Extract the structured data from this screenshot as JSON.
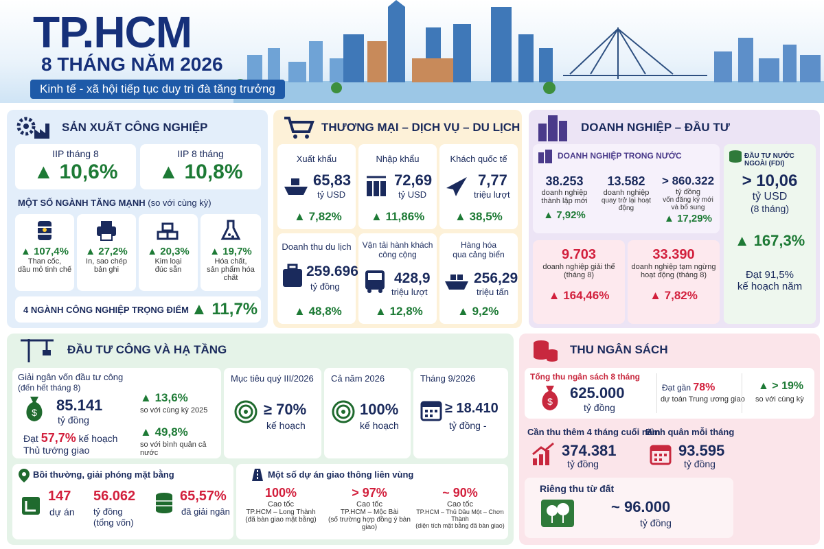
{
  "header": {
    "title": "TP.HCM",
    "subtitle": "8 THÁNG NĂM 2026",
    "tagline": "Kinh tế - xã hội tiếp tục duy trì đà tăng trưởng"
  },
  "industry": {
    "title": "SẢN XUẤT CÔNG NGHIỆP",
    "iip_month_label": "IIP tháng 8",
    "iip_month_value": "10,6%",
    "iip_8m_label": "IIP 8 tháng",
    "iip_8m_value": "10,8%",
    "sectors_title": "MỘT SỐ NGÀNH TĂNG MẠNH",
    "sectors_note": "(so với cùng kỳ)",
    "sectors": [
      {
        "value": "107,4%",
        "label1": "Than cốc,",
        "label2": "dầu mỏ tinh chế",
        "icon": "oil-barrel-icon"
      },
      {
        "value": "27,2%",
        "label1": "In, sao chép",
        "label2": "bản ghi",
        "icon": "printer-icon"
      },
      {
        "value": "20,3%",
        "label1": "Kim loại",
        "label2": "đúc sẵn",
        "icon": "metal-bars-icon"
      },
      {
        "value": "19,7%",
        "label1": "Hóa chất,",
        "label2": "sản phẩm hóa chất",
        "icon": "flask-icon"
      }
    ],
    "key_label": "4 NGÀNH CÔNG NGHIỆP TRỌNG ĐIỂM",
    "key_value": "11,7%"
  },
  "trade": {
    "title": "THƯƠNG MẠI – DỊCH VỤ – DU LỊCH",
    "items": [
      {
        "label": "Xuất khẩu",
        "value": "65,83",
        "unit": "tỷ USD",
        "growth": "7,82%",
        "icon": "ship-icon"
      },
      {
        "label": "Nhập khẩu",
        "value": "72,69",
        "unit": "tỷ USD",
        "growth": "11,86%",
        "icon": "containers-icon"
      },
      {
        "label": "Khách quốc tế",
        "value": "7,77",
        "unit": "triệu lượt",
        "growth": "38,5%",
        "icon": "airplane-icon"
      },
      {
        "label": "Doanh thu du lịch",
        "value": "259.696",
        "unit": "tỷ đồng",
        "growth": "48,8%",
        "icon": "suitcase-icon"
      },
      {
        "label1": "Vận tải hành khách",
        "label2": "công cộng",
        "value": "428,9",
        "unit": "triệu lượt",
        "growth": "12,8%",
        "icon": "bus-icon"
      },
      {
        "label1": "Hàng hóa",
        "label2": "qua cảng biển",
        "value": "256,29",
        "unit": "triệu tấn",
        "growth": "9,2%",
        "icon": "cargo-ship-icon"
      }
    ]
  },
  "business": {
    "title": "DOANH NGHIỆP – ĐẦU TƯ",
    "domestic_title": "DOANH NGHIỆP TRONG NƯỚC",
    "new_value": "38.253",
    "new_l1": "doanh nghiệp",
    "new_l2": "thành lập mới",
    "new_growth": "7,92%",
    "return_value": "13.582",
    "return_l1": "doanh nghiệp",
    "return_l2": "quay trở lại hoạt động",
    "capital_value": "> 860.322",
    "capital_l1": "tỷ đồng",
    "capital_l2": "vốn đăng ký mới",
    "capital_l3": "và bổ sung",
    "capital_growth": "17,29%",
    "dissolved_value": "9.703",
    "dissolved_l1": "doanh nghiệp giải thể",
    "dissolved_l2": "(tháng 8)",
    "dissolved_growth": "164,46%",
    "paused_value": "33.390",
    "paused_l1": "doanh nghiệp tạm ngừng",
    "paused_l2": "hoạt động (tháng 8)",
    "paused_growth": "7,82%",
    "fdi_title": "ĐẦU TƯ NƯỚC NGOÀI (FDI)",
    "fdi_value": "> 10,06",
    "fdi_unit": "tỷ USD",
    "fdi_period": "(8 tháng)",
    "fdi_growth": "167,3%",
    "fdi_plan1": "Đạt 91,5%",
    "fdi_plan2": "kế hoạch năm"
  },
  "public": {
    "title": "ĐẦU TƯ CÔNG VÀ HẠ TẦNG",
    "disb_title": "Giải ngân vốn đầu tư công",
    "disb_sub": "(đến hết tháng 8)",
    "disb_value": "85.141",
    "disb_unit": "tỷ đồng",
    "disb_plan_pre": "Đạt",
    "disb_plan_pct": "57,7%",
    "disb_plan_post": "kế hoạch",
    "disb_plan_l2": "Thủ tướng giao",
    "g1": "13,6%",
    "g1_note": "so với cùng kỳ 2025",
    "g2": "49,8%",
    "g2_note": "so với bình quân cả nước",
    "q3_title": "Mục tiêu quý III/2026",
    "q3_value": "≥ 70%",
    "q3_note": "kế hoạch",
    "year_title": "Cả năm 2026",
    "year_value": "100%",
    "year_note": "kế hoạch",
    "sep_title": "Tháng 9/2026",
    "sep_value": "≥ 18.410",
    "sep_note": "tỷ đồng -",
    "land_title": "Bồi thường, giải phóng mặt bằng",
    "land_projects": "147",
    "land_projects_l": "dự án",
    "land_capital": "56.062",
    "land_capital_l1": "tỷ đồng",
    "land_capital_l2": "(tổng vốn)",
    "land_paid": "65,57%",
    "land_paid_l": "đã giải ngân",
    "roads_title": "Một số dự án giao thông liên vùng",
    "roads": [
      {
        "value": "100%",
        "l1": "Cao tốc",
        "l2": "TP.HCM – Long Thành",
        "l3": "(đã bàn giao mặt bằng)"
      },
      {
        "value": "> 97%",
        "l1": "Cao tốc",
        "l2": "TP.HCM – Mộc Bài",
        "l3": "(số trường hợp đồng ý bàn giao)"
      },
      {
        "value": "~ 90%",
        "l1": "Cao tốc",
        "l2": "TP.HCM – Thủ Dầu Một – Chơn Thành",
        "l3": "(diện tích mặt bằng đã bàn giao)"
      }
    ]
  },
  "budget": {
    "title": "THU NGÂN SÁCH",
    "total_title": "Tổng thu ngân sách 8 tháng",
    "total_value": "625.000",
    "total_unit": "tỷ đồng",
    "approx_pre": "Đạt gần",
    "approx_pct": "78%",
    "approx_note": "dự toán Trung ương giao",
    "yoy": "> 19%",
    "yoy_note": "so với cùng kỳ",
    "need_title": "Cần thu thêm 4 tháng cuối năm",
    "need_value": "374.381",
    "need_unit": "tỷ đồng",
    "avg_title": "Bình quân mỗi tháng",
    "avg_value": "93.595",
    "avg_unit": "tỷ đồng",
    "land_title": "Riêng thu từ đất",
    "land_value": "~ 96.000",
    "land_unit": "tỷ đồng"
  }
}
